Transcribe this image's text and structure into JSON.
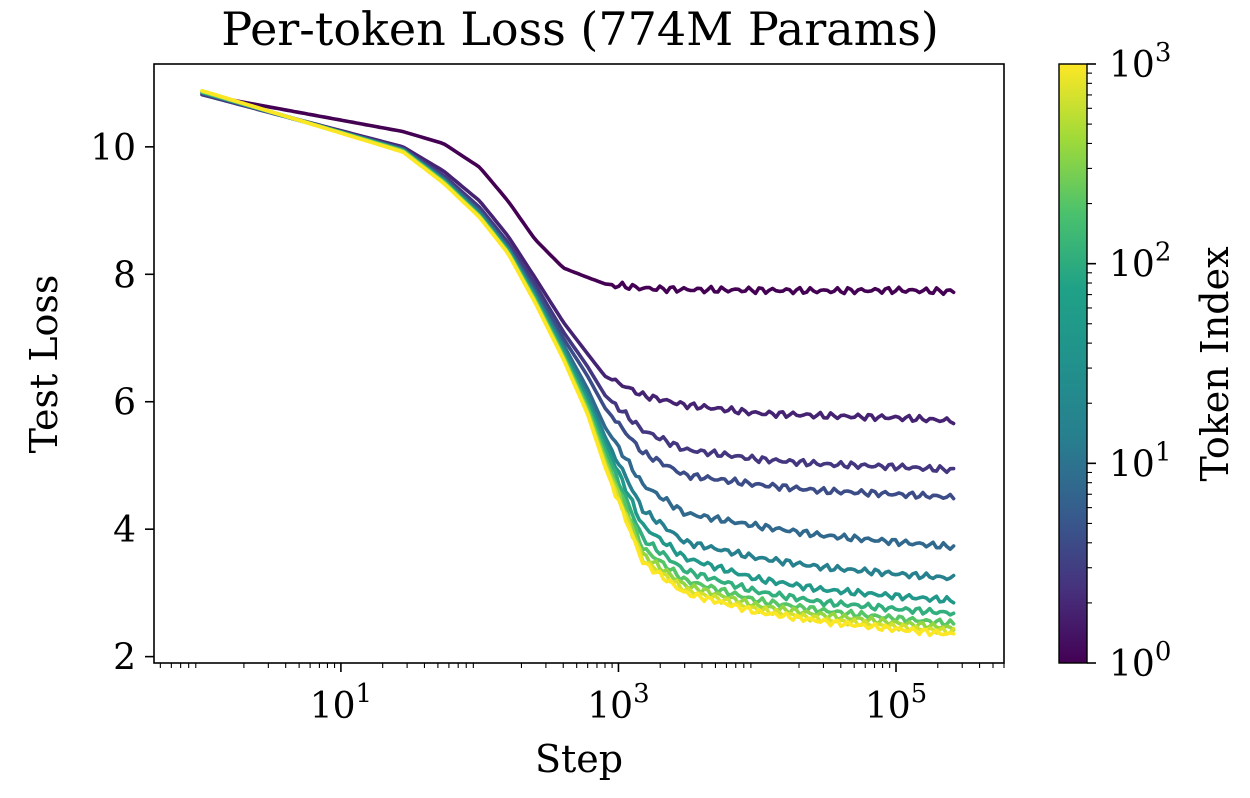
{
  "chart_data": {
    "type": "line",
    "title": "Per-token Loss (774M Params)",
    "xlabel": "Step",
    "ylabel": "Test Loss",
    "x_scale": "log",
    "xlim": [
      0.45,
      600000
    ],
    "ylim": [
      1.9,
      11.3
    ],
    "x_ticks": [
      {
        "base": "10",
        "exp": "1",
        "value": 10
      },
      {
        "base": "10",
        "exp": "3",
        "value": 1000
      },
      {
        "base": "10",
        "exp": "5",
        "value": 100000
      }
    ],
    "y_ticks": [
      {
        "label": "2",
        "value": 2
      },
      {
        "label": "4",
        "value": 4
      },
      {
        "label": "6",
        "value": 6
      },
      {
        "label": "8",
        "value": 8
      },
      {
        "label": "10",
        "value": 10
      }
    ],
    "colorbar": {
      "label": "Token Index",
      "scale": "log",
      "range": [
        1,
        1000
      ],
      "colormap": "viridis",
      "ticks": [
        {
          "base": "10",
          "exp": "0",
          "value": 1
        },
        {
          "base": "10",
          "exp": "1",
          "value": 10
        },
        {
          "base": "10",
          "exp": "2",
          "value": 100
        },
        {
          "base": "10",
          "exp": "3",
          "value": 1000
        }
      ]
    },
    "grid": false,
    "series": [
      {
        "token_index": 1,
        "x": [
          1,
          28,
          55,
          100,
          160,
          250,
          400,
          600,
          800,
          1500,
          3000,
          10000,
          30000,
          100000,
          260000
        ],
        "y": [
          10.82,
          10.24,
          10.05,
          9.68,
          9.15,
          8.55,
          8.1,
          7.95,
          7.85,
          7.78,
          7.76,
          7.75,
          7.74,
          7.75,
          7.73
        ]
      },
      {
        "token_index": 2,
        "x": [
          1,
          28,
          55,
          100,
          160,
          250,
          400,
          600,
          800,
          1500,
          3000,
          10000,
          30000,
          100000,
          260000
        ],
        "y": [
          10.82,
          10.0,
          9.62,
          9.15,
          8.6,
          7.95,
          7.25,
          6.75,
          6.4,
          6.1,
          5.95,
          5.82,
          5.78,
          5.75,
          5.7
        ]
      },
      {
        "token_index": 3,
        "x": [
          1,
          28,
          55,
          100,
          160,
          250,
          400,
          600,
          800,
          1500,
          3000,
          10000,
          30000,
          100000,
          260000
        ],
        "y": [
          10.82,
          9.98,
          9.55,
          9.05,
          8.5,
          7.85,
          7.1,
          6.55,
          6.1,
          5.55,
          5.25,
          5.1,
          5.02,
          4.98,
          4.93
        ]
      },
      {
        "token_index": 5,
        "x": [
          1,
          28,
          55,
          100,
          160,
          250,
          400,
          600,
          800,
          1500,
          3000,
          10000,
          30000,
          100000,
          260000
        ],
        "y": [
          10.84,
          9.97,
          9.52,
          9.0,
          8.45,
          7.78,
          7.0,
          6.4,
          5.9,
          5.2,
          4.85,
          4.7,
          4.6,
          4.55,
          4.5
        ]
      },
      {
        "token_index": 10,
        "x": [
          1,
          28,
          55,
          100,
          160,
          250,
          400,
          600,
          800,
          1500,
          3000,
          10000,
          30000,
          100000,
          260000
        ],
        "y": [
          10.85,
          9.96,
          9.5,
          8.98,
          8.42,
          7.72,
          6.9,
          6.2,
          5.6,
          4.7,
          4.25,
          4.05,
          3.9,
          3.8,
          3.72
        ]
      },
      {
        "token_index": 20,
        "x": [
          1,
          28,
          55,
          100,
          160,
          250,
          400,
          600,
          800,
          1500,
          3000,
          10000,
          30000,
          100000,
          260000
        ],
        "y": [
          10.85,
          9.95,
          9.48,
          8.95,
          8.4,
          7.68,
          6.85,
          6.1,
          5.45,
          4.3,
          3.8,
          3.55,
          3.4,
          3.3,
          3.23
        ]
      },
      {
        "token_index": 40,
        "x": [
          1,
          28,
          55,
          100,
          160,
          250,
          400,
          600,
          800,
          1500,
          3000,
          10000,
          30000,
          100000,
          260000
        ],
        "y": [
          10.86,
          9.95,
          9.47,
          8.93,
          8.38,
          7.65,
          6.8,
          6.02,
          5.35,
          4.05,
          3.55,
          3.22,
          3.05,
          2.95,
          2.88
        ]
      },
      {
        "token_index": 80,
        "x": [
          1,
          28,
          55,
          100,
          160,
          250,
          400,
          600,
          800,
          1500,
          3000,
          10000,
          30000,
          100000,
          260000
        ],
        "y": [
          10.86,
          9.94,
          9.46,
          8.92,
          8.36,
          7.62,
          6.75,
          5.95,
          5.25,
          3.85,
          3.35,
          3.02,
          2.85,
          2.75,
          2.68
        ]
      },
      {
        "token_index": 160,
        "x": [
          1,
          28,
          55,
          100,
          160,
          250,
          400,
          600,
          800,
          1500,
          3000,
          10000,
          30000,
          100000,
          260000
        ],
        "y": [
          10.87,
          9.94,
          9.45,
          8.91,
          8.35,
          7.6,
          6.72,
          5.9,
          5.15,
          3.7,
          3.2,
          2.88,
          2.72,
          2.6,
          2.52
        ]
      },
      {
        "token_index": 320,
        "x": [
          1,
          28,
          55,
          100,
          160,
          250,
          400,
          600,
          800,
          1500,
          3000,
          10000,
          30000,
          100000,
          260000
        ],
        "y": [
          10.87,
          9.93,
          9.44,
          8.9,
          8.34,
          7.58,
          6.7,
          5.85,
          5.08,
          3.6,
          3.12,
          2.8,
          2.65,
          2.53,
          2.45
        ]
      },
      {
        "token_index": 640,
        "x": [
          1,
          28,
          55,
          100,
          160,
          250,
          400,
          600,
          800,
          1500,
          3000,
          10000,
          30000,
          100000,
          260000
        ],
        "y": [
          10.88,
          9.92,
          9.43,
          8.9,
          8.33,
          7.57,
          6.68,
          5.82,
          5.02,
          3.52,
          3.05,
          2.74,
          2.58,
          2.47,
          2.39
        ]
      },
      {
        "token_index": 1000,
        "x": [
          1,
          28,
          55,
          100,
          160,
          250,
          400,
          600,
          800,
          1500,
          3000,
          10000,
          30000,
          100000,
          260000
        ],
        "y": [
          10.88,
          9.92,
          9.43,
          8.89,
          8.33,
          7.56,
          6.67,
          5.8,
          4.98,
          3.48,
          3.0,
          2.7,
          2.55,
          2.43,
          2.35
        ]
      }
    ]
  }
}
